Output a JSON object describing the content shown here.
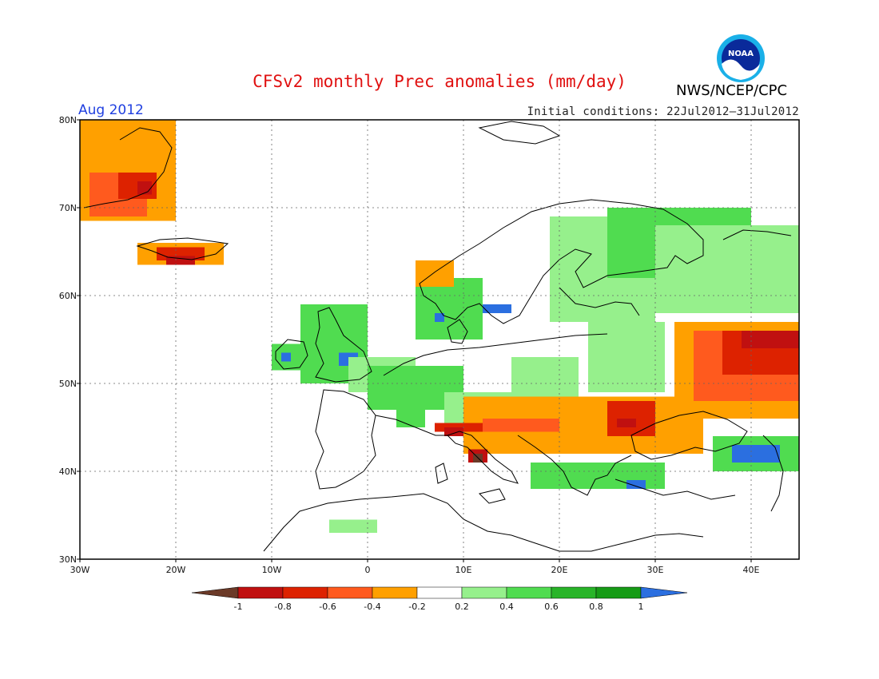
{
  "header": {
    "title": "CFSv2 monthly Prec anomalies (mm/day)",
    "period": "Aug 2012",
    "initial_conditions": "Initial conditions: 22Jul2012–31Jul2012",
    "agency": "NWS/NCEP/CPC",
    "logo_text": "NOAA"
  },
  "map": {
    "lat_ticks": [
      "30N",
      "40N",
      "50N",
      "60N",
      "70N",
      "80N"
    ],
    "lon_ticks": [
      "30W",
      "20W",
      "10W",
      "0",
      "10E",
      "20E",
      "30E",
      "40E"
    ],
    "lat_range": [
      30,
      80
    ],
    "lon_range": [
      -30,
      45
    ],
    "grid": true
  },
  "legend": {
    "labels": [
      "-1",
      "-0.8",
      "-0.6",
      "-0.4",
      "-0.2",
      "0.2",
      "0.4",
      "0.6",
      "0.8",
      "1"
    ],
    "colors": [
      "#6b3a28",
      "#c01010",
      "#dd2200",
      "#ff5a1e",
      "#ffa000",
      "#ffffff",
      "#96f08c",
      "#50dc50",
      "#28b428",
      "#169b16",
      "#2b6fe0"
    ]
  }
}
